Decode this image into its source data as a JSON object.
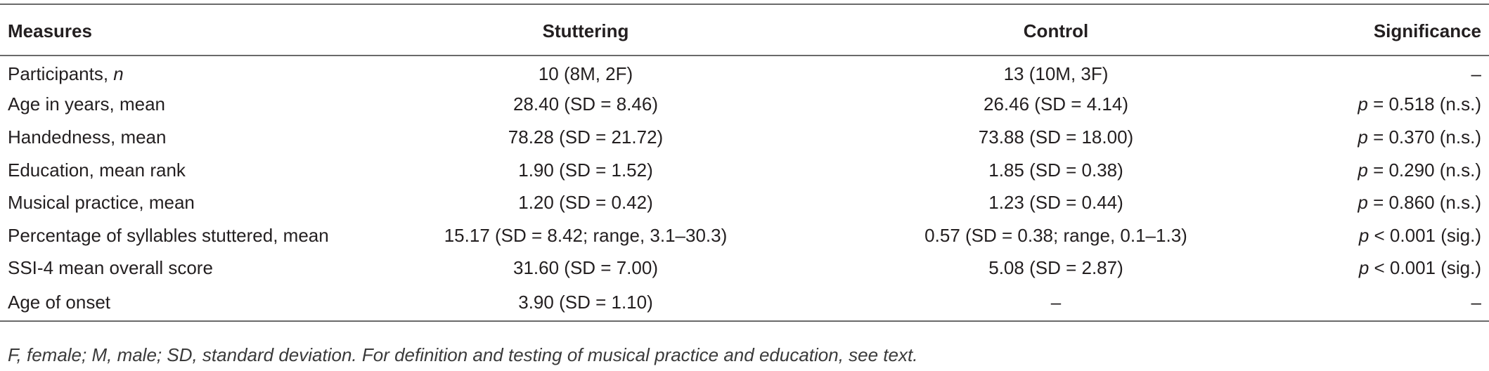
{
  "table": {
    "header": [
      "Measures",
      "Stuttering",
      "Control",
      "Significance"
    ],
    "rows": [
      [
        [
          {
            "text": "Participants, ",
            "italic": false
          },
          {
            "text": "n",
            "italic": true
          }
        ],
        "10 (8M, 2F)",
        "13 (10M, 3F)",
        "–"
      ],
      [
        "Age in years, mean",
        "28.40 (SD = 8.46)",
        "26.46 (SD = 4.14)",
        [
          {
            "text": "p",
            "italic": true
          },
          {
            "text": " = 0.518 (n.s.)",
            "italic": false
          }
        ]
      ],
      [
        "Handedness, mean",
        "78.28 (SD = 21.72)",
        "73.88 (SD = 18.00)",
        [
          {
            "text": "p",
            "italic": true
          },
          {
            "text": " = 0.370 (n.s.)",
            "italic": false
          }
        ]
      ],
      [
        "Education, mean rank",
        "1.90 (SD = 1.52)",
        "1.85 (SD = 0.38)",
        [
          {
            "text": "p",
            "italic": true
          },
          {
            "text": " = 0.290 (n.s.)",
            "italic": false
          }
        ]
      ],
      [
        "Musical practice, mean",
        "1.20 (SD = 0.42)",
        "1.23 (SD = 0.44)",
        [
          {
            "text": "p",
            "italic": true
          },
          {
            "text": " = 0.860 (n.s.)",
            "italic": false
          }
        ]
      ],
      [
        "Percentage of syllables stuttered, mean",
        "15.17 (SD = 8.42; range, 3.1–30.3)",
        "0.57 (SD = 0.38; range, 0.1–1.3)",
        [
          {
            "text": "p",
            "italic": true
          },
          {
            "text": " < 0.001 (sig.)",
            "italic": false
          }
        ]
      ],
      [
        "SSI-4 mean overall score",
        "31.60 (SD = 7.00)",
        "5.08 (SD = 2.87)",
        [
          {
            "text": "p",
            "italic": true
          },
          {
            "text": " < 0.001 (sig.)",
            "italic": false
          }
        ]
      ],
      [
        "Age of onset",
        "3.90 (SD = 1.10)",
        "–",
        "–"
      ]
    ],
    "footnote": "F, female; M, male; SD, standard deviation. For definition and testing of musical practice and education, see text."
  }
}
